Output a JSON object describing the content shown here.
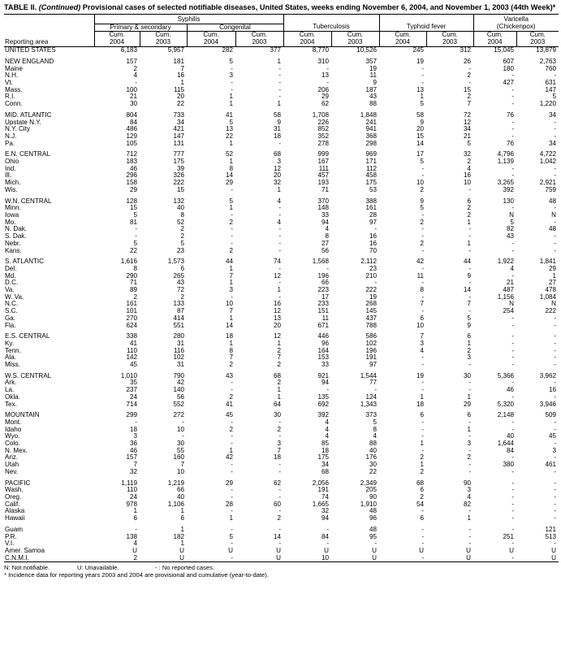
{
  "title": {
    "prefix": "TABLE II. ",
    "italic": "(Continued)",
    "text": " Provisional cases of selected notifiable diseases, United States, weeks ending November 6, 2004, and November 1, 2003 (44th Week)*"
  },
  "headers": {
    "syphilis": "Syphilis",
    "primary_secondary": "Primary & secondary",
    "congenital": "Congenital",
    "tuberculosis": "Tuberculosis",
    "typhoid": "Typhoid fever",
    "varicella": "Varicella",
    "chickenpox": "(Chickenpox)",
    "reporting_area": "Reporting area",
    "cum": "Cum.",
    "y2004": "2004",
    "y2003": "2003"
  },
  "rows": [
    [
      "UNITED STATES",
      "6,183",
      "5,957",
      "282",
      "377",
      "8,770",
      "10,526",
      "245",
      "312",
      "15,045",
      "13,879"
    ],
    null,
    [
      "NEW ENGLAND",
      "157",
      "181",
      "5",
      "1",
      "310",
      "357",
      "19",
      "26",
      "607",
      "2,763"
    ],
    [
      "Maine",
      "2",
      "7",
      "-",
      "-",
      "-",
      "19",
      "-",
      "-",
      "180",
      "760"
    ],
    [
      "N.H.",
      "4",
      "16",
      "3",
      "-",
      "13",
      "11",
      "-",
      "2",
      "-",
      "-"
    ],
    [
      "Vt.",
      "-",
      "1",
      "-",
      "-",
      "-",
      "9",
      "-",
      "-",
      "427",
      "631"
    ],
    [
      "Mass.",
      "100",
      "115",
      "-",
      "-",
      "206",
      "187",
      "13",
      "15",
      "-",
      "147"
    ],
    [
      "R.I.",
      "21",
      "20",
      "1",
      "-",
      "29",
      "43",
      "1",
      "2",
      "-",
      "5"
    ],
    [
      "Conn.",
      "30",
      "22",
      "1",
      "1",
      "62",
      "88",
      "5",
      "7",
      "-",
      "1,220"
    ],
    null,
    [
      "MID. ATLANTIC",
      "804",
      "733",
      "41",
      "58",
      "1,708",
      "1,848",
      "58",
      "72",
      "76",
      "34"
    ],
    [
      "Upstate N.Y.",
      "84",
      "34",
      "5",
      "9",
      "226",
      "241",
      "9",
      "12",
      "-",
      "-"
    ],
    [
      "N.Y. City",
      "486",
      "421",
      "13",
      "31",
      "852",
      "941",
      "20",
      "34",
      "-",
      "-"
    ],
    [
      "N.J.",
      "129",
      "147",
      "22",
      "18",
      "352",
      "368",
      "15",
      "21",
      "-",
      "-"
    ],
    [
      "Pa.",
      "105",
      "131",
      "1",
      "-",
      "278",
      "298",
      "14",
      "5",
      "76",
      "34"
    ],
    null,
    [
      "E.N. CENTRAL",
      "712",
      "777",
      "52",
      "68",
      "999",
      "969",
      "17",
      "32",
      "4,796",
      "4,722"
    ],
    [
      "Ohio",
      "183",
      "175",
      "1",
      "3",
      "167",
      "171",
      "5",
      "2",
      "1,139",
      "1,042"
    ],
    [
      "Ind.",
      "46",
      "39",
      "8",
      "12",
      "111",
      "112",
      "-",
      "4",
      "-",
      "-"
    ],
    [
      "Ill.",
      "296",
      "326",
      "14",
      "20",
      "457",
      "458",
      "-",
      "16",
      "-",
      "-"
    ],
    [
      "Mich.",
      "158",
      "222",
      "29",
      "32",
      "193",
      "175",
      "10",
      "10",
      "3,265",
      "2,921"
    ],
    [
      "Wis.",
      "29",
      "15",
      "-",
      "1",
      "71",
      "53",
      "2",
      "-",
      "392",
      "759"
    ],
    null,
    [
      "W.N. CENTRAL",
      "128",
      "132",
      "5",
      "4",
      "370",
      "388",
      "9",
      "6",
      "130",
      "48"
    ],
    [
      "Minn.",
      "15",
      "40",
      "1",
      "-",
      "148",
      "161",
      "5",
      "2",
      "-",
      "-"
    ],
    [
      "Iowa",
      "5",
      "8",
      "-",
      "-",
      "33",
      "28",
      "-",
      "2",
      "N",
      "N"
    ],
    [
      "Mo.",
      "81",
      "52",
      "2",
      "4",
      "94",
      "97",
      "2",
      "1",
      "5",
      "-"
    ],
    [
      "N. Dak.",
      "-",
      "2",
      "-",
      "-",
      "4",
      "-",
      "-",
      "-",
      "82",
      "48"
    ],
    [
      "S. Dak.",
      "-",
      "2",
      "-",
      "-",
      "8",
      "16",
      "-",
      "-",
      "43",
      "-"
    ],
    [
      "Nebr.",
      "5",
      "5",
      "-",
      "-",
      "27",
      "16",
      "2",
      "1",
      "-",
      "-"
    ],
    [
      "Kans.",
      "22",
      "23",
      "2",
      "-",
      "56",
      "70",
      "-",
      "-",
      "-",
      "-"
    ],
    null,
    [
      "S. ATLANTIC",
      "1,616",
      "1,573",
      "44",
      "74",
      "1,568",
      "2,112",
      "42",
      "44",
      "1,922",
      "1,841"
    ],
    [
      "Del.",
      "8",
      "6",
      "1",
      "-",
      "-",
      "23",
      "-",
      "-",
      "4",
      "29"
    ],
    [
      "Md.",
      "290",
      "265",
      "7",
      "12",
      "196",
      "210",
      "11",
      "9",
      "-",
      "1"
    ],
    [
      "D.C.",
      "71",
      "43",
      "1",
      "-",
      "66",
      "-",
      "-",
      "-",
      "21",
      "27"
    ],
    [
      "Va.",
      "89",
      "72",
      "3",
      "1",
      "223",
      "222",
      "8",
      "14",
      "487",
      "478"
    ],
    [
      "W. Va.",
      "2",
      "2",
      "-",
      "-",
      "17",
      "19",
      "-",
      "-",
      "1,156",
      "1,084"
    ],
    [
      "N.C.",
      "161",
      "133",
      "10",
      "16",
      "233",
      "268",
      "7",
      "7",
      "N",
      "N"
    ],
    [
      "S.C.",
      "101",
      "87",
      "7",
      "12",
      "151",
      "145",
      "-",
      "-",
      "254",
      "222"
    ],
    [
      "Ga.",
      "270",
      "414",
      "1",
      "13",
      "11",
      "437",
      "6",
      "5",
      "-",
      "-"
    ],
    [
      "Fla.",
      "624",
      "551",
      "14",
      "20",
      "671",
      "788",
      "10",
      "9",
      "-",
      "-"
    ],
    null,
    [
      "E.S. CENTRAL",
      "338",
      "280",
      "18",
      "12",
      "446",
      "586",
      "7",
      "6",
      "-",
      "-"
    ],
    [
      "Ky.",
      "41",
      "31",
      "1",
      "1",
      "96",
      "102",
      "3",
      "1",
      "-",
      "-"
    ],
    [
      "Tenn.",
      "110",
      "116",
      "8",
      "2",
      "164",
      "196",
      "4",
      "2",
      "-",
      "-"
    ],
    [
      "Ala.",
      "142",
      "102",
      "7",
      "7",
      "153",
      "191",
      "-",
      "3",
      "-",
      "-"
    ],
    [
      "Miss.",
      "45",
      "31",
      "2",
      "2",
      "33",
      "97",
      "-",
      "-",
      "-",
      "-"
    ],
    null,
    [
      "W.S. CENTRAL",
      "1,010",
      "790",
      "43",
      "68",
      "921",
      "1,544",
      "19",
      "30",
      "5,366",
      "3,962"
    ],
    [
      "Ark.",
      "35",
      "42",
      "-",
      "2",
      "94",
      "77",
      "-",
      "-",
      "-",
      "-"
    ],
    [
      "La.",
      "237",
      "140",
      "-",
      "1",
      "-",
      "-",
      "-",
      "-",
      "46",
      "16"
    ],
    [
      "Okla.",
      "24",
      "56",
      "2",
      "1",
      "135",
      "124",
      "1",
      "1",
      "-",
      "-"
    ],
    [
      "Tex.",
      "714",
      "552",
      "41",
      "64",
      "692",
      "1,343",
      "18",
      "29",
      "5,320",
      "3,946"
    ],
    null,
    [
      "MOUNTAIN",
      "299",
      "272",
      "45",
      "30",
      "392",
      "373",
      "6",
      "6",
      "2,148",
      "509"
    ],
    [
      "Mont.",
      "-",
      "-",
      "-",
      "-",
      "4",
      "5",
      "-",
      "-",
      "-",
      "-"
    ],
    [
      "Idaho",
      "18",
      "10",
      "2",
      "2",
      "4",
      "8",
      "-",
      "1",
      "-",
      "-"
    ],
    [
      "Wyo.",
      "3",
      "-",
      "-",
      "-",
      "4",
      "4",
      "-",
      "-",
      "40",
      "45"
    ],
    [
      "Colo.",
      "36",
      "30",
      "-",
      "3",
      "85",
      "88",
      "1",
      "3",
      "1,644",
      "-"
    ],
    [
      "N. Mex.",
      "46",
      "55",
      "1",
      "7",
      "18",
      "40",
      "-",
      "-",
      "84",
      "3"
    ],
    [
      "Ariz.",
      "157",
      "160",
      "42",
      "18",
      "175",
      "176",
      "2",
      "2",
      "-",
      "-"
    ],
    [
      "Utah",
      "7",
      "7",
      "-",
      "-",
      "34",
      "30",
      "1",
      "-",
      "380",
      "461"
    ],
    [
      "Nev.",
      "32",
      "10",
      "-",
      "-",
      "68",
      "22",
      "2",
      "-",
      "-",
      "-"
    ],
    null,
    [
      "PACIFIC",
      "1,119",
      "1,219",
      "29",
      "62",
      "2,056",
      "2,349",
      "68",
      "90",
      "-",
      "-"
    ],
    [
      "Wash.",
      "110",
      "66",
      "-",
      "-",
      "191",
      "205",
      "6",
      "3",
      "-",
      "-"
    ],
    [
      "Oreg.",
      "24",
      "40",
      "-",
      "-",
      "74",
      "90",
      "2",
      "4",
      "-",
      "-"
    ],
    [
      "Calif.",
      "978",
      "1,106",
      "28",
      "60",
      "1,665",
      "1,910",
      "54",
      "82",
      "-",
      "-"
    ],
    [
      "Alaska",
      "1",
      "1",
      "-",
      "-",
      "32",
      "48",
      "-",
      "-",
      "-",
      "-"
    ],
    [
      "Hawaii",
      "6",
      "6",
      "1",
      "2",
      "94",
      "96",
      "6",
      "1",
      "-",
      "-"
    ],
    null,
    [
      "Guam",
      "-",
      "1",
      "-",
      "-",
      "-",
      "48",
      "-",
      "-",
      "-",
      "121"
    ],
    [
      "P.R.",
      "138",
      "182",
      "5",
      "14",
      "84",
      "95",
      "-",
      "-",
      "251",
      "513"
    ],
    [
      "V.I.",
      "4",
      "1",
      "-",
      "-",
      "-",
      "-",
      "-",
      "-",
      "-",
      "-"
    ],
    [
      "Amer. Samoa",
      "U",
      "U",
      "U",
      "U",
      "U",
      "U",
      "U",
      "U",
      "U",
      "U"
    ],
    [
      "C.N.M.I.",
      "2",
      "U",
      "-",
      "U",
      "10",
      "U",
      "-",
      "U",
      "-",
      "U"
    ]
  ],
  "footnotes": {
    "n": "N: Not notifiable.",
    "u": "U: Unavailable.",
    "dash": "- : No reported cases.",
    "star": "* Incidence data for reporting years 2003 and 2004 are provisional and cumulative (year-to-date)."
  }
}
